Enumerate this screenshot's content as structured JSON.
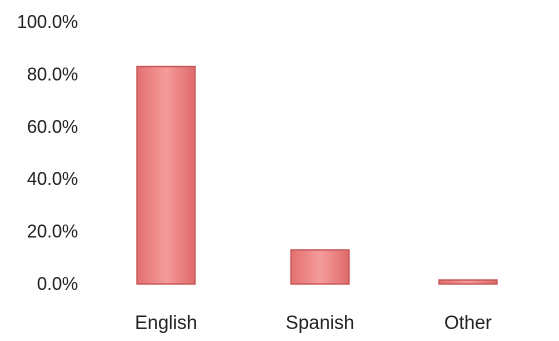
{
  "chart_data": {
    "type": "bar",
    "title": "",
    "xlabel": "",
    "ylabel": "",
    "categories": [
      "English",
      "Spanish",
      "Other"
    ],
    "values": [
      83.0,
      13.0,
      1.0
    ],
    "ylim": [
      0,
      100
    ],
    "y_ticks": [
      "100.0%",
      "80.0%",
      "60.0%",
      "40.0%",
      "20.0%",
      "0.0%"
    ],
    "grid": false,
    "legend": "none",
    "bar_color": "#ea7f7f",
    "bar_edge_color": "#c85a5a"
  }
}
